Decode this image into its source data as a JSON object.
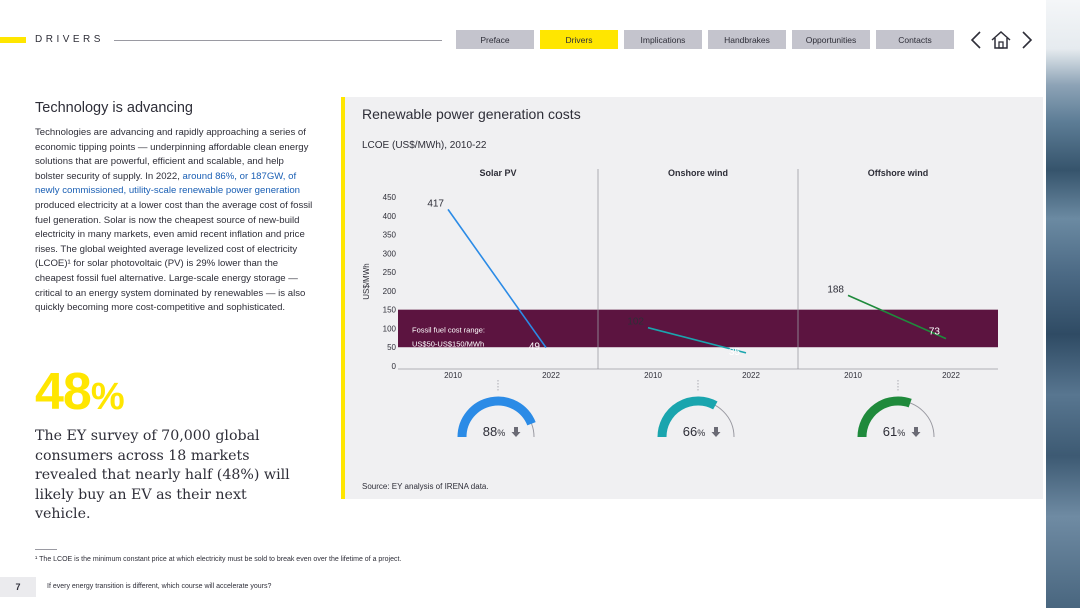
{
  "header": {
    "section": "DRIVERS",
    "nav": [
      "Preface",
      "Drivers",
      "Implications",
      "Handbrakes",
      "Opportunities",
      "Contacts"
    ],
    "active_nav": "Drivers",
    "icons": [
      "chevron-left-icon",
      "home-icon",
      "chevron-right-icon"
    ]
  },
  "left": {
    "title": "Technology is advancing",
    "body_before_link": "Technologies are advancing and rapidly approaching a series of economic tipping points — underpinning affordable clean energy solutions that are powerful, efficient and scalable, and help bolster security of supply. In 2022, ",
    "body_link": "around 86%, or 187GW, of newly commissioned, utility-scale renewable power generation",
    "body_after_link": " produced electricity at a lower cost than the average cost of fossil fuel generation. Solar is now the cheapest source of new-build electricity in many markets, even amid recent inflation and price rises. The global weighted average levelized cost of electricity (LCOE)¹ for solar photovoltaic (PV) is 29% lower than the cheapest fossil fuel alternative. Large-scale energy storage — critical to an energy system dominated by renewables — is also quickly becoming more cost-competitive and sophisticated.",
    "stat_value": "48",
    "stat_unit": "%",
    "stat_text": "The EY survey of 70,000 global consumers across 18 markets revealed that nearly half (48%) will likely buy an EV as their next vehicle."
  },
  "chart_data": {
    "type": "line",
    "title": "Renewable power generation costs",
    "subtitle": "LCOE (US$/MWh), 2010-22",
    "ylabel": "US$/MWh",
    "ylim": [
      0,
      450
    ],
    "yticks": [
      0,
      50,
      100,
      150,
      200,
      250,
      300,
      350,
      400,
      450
    ],
    "band": {
      "low": 50,
      "high": 150,
      "label_line1": "Fossil fuel cost range:",
      "label_line2": "US$50-US$150/MWh",
      "color": "#5c1440"
    },
    "panels": [
      {
        "name": "Solar PV",
        "x": [
          "2010",
          "2022"
        ],
        "values": [
          417,
          49
        ],
        "labels": [
          "417",
          "49"
        ],
        "color": "#2b8be6",
        "reduction": "88",
        "reduction_unit": "%"
      },
      {
        "name": "Onshore wind",
        "x": [
          "2010",
          "2022"
        ],
        "values": [
          102,
          35
        ],
        "labels": [
          "102",
          "35"
        ],
        "color": "#1aa5ae",
        "reduction": "66",
        "reduction_unit": "%"
      },
      {
        "name": "Offshore wind",
        "x": [
          "2010",
          "2022"
        ],
        "values": [
          188,
          73
        ],
        "labels": [
          "188",
          "73"
        ],
        "color": "#1f8a3c",
        "reduction": "61",
        "reduction_unit": "%"
      }
    ],
    "source": "Source: EY analysis of IRENA data."
  },
  "footer": {
    "footnote": "¹ The LCOE is the minimum constant price at which electricity must be sold to break even over the lifetime of a project.",
    "page": "7",
    "tagline": "If every energy transition is different, which course will accelerate yours?"
  }
}
